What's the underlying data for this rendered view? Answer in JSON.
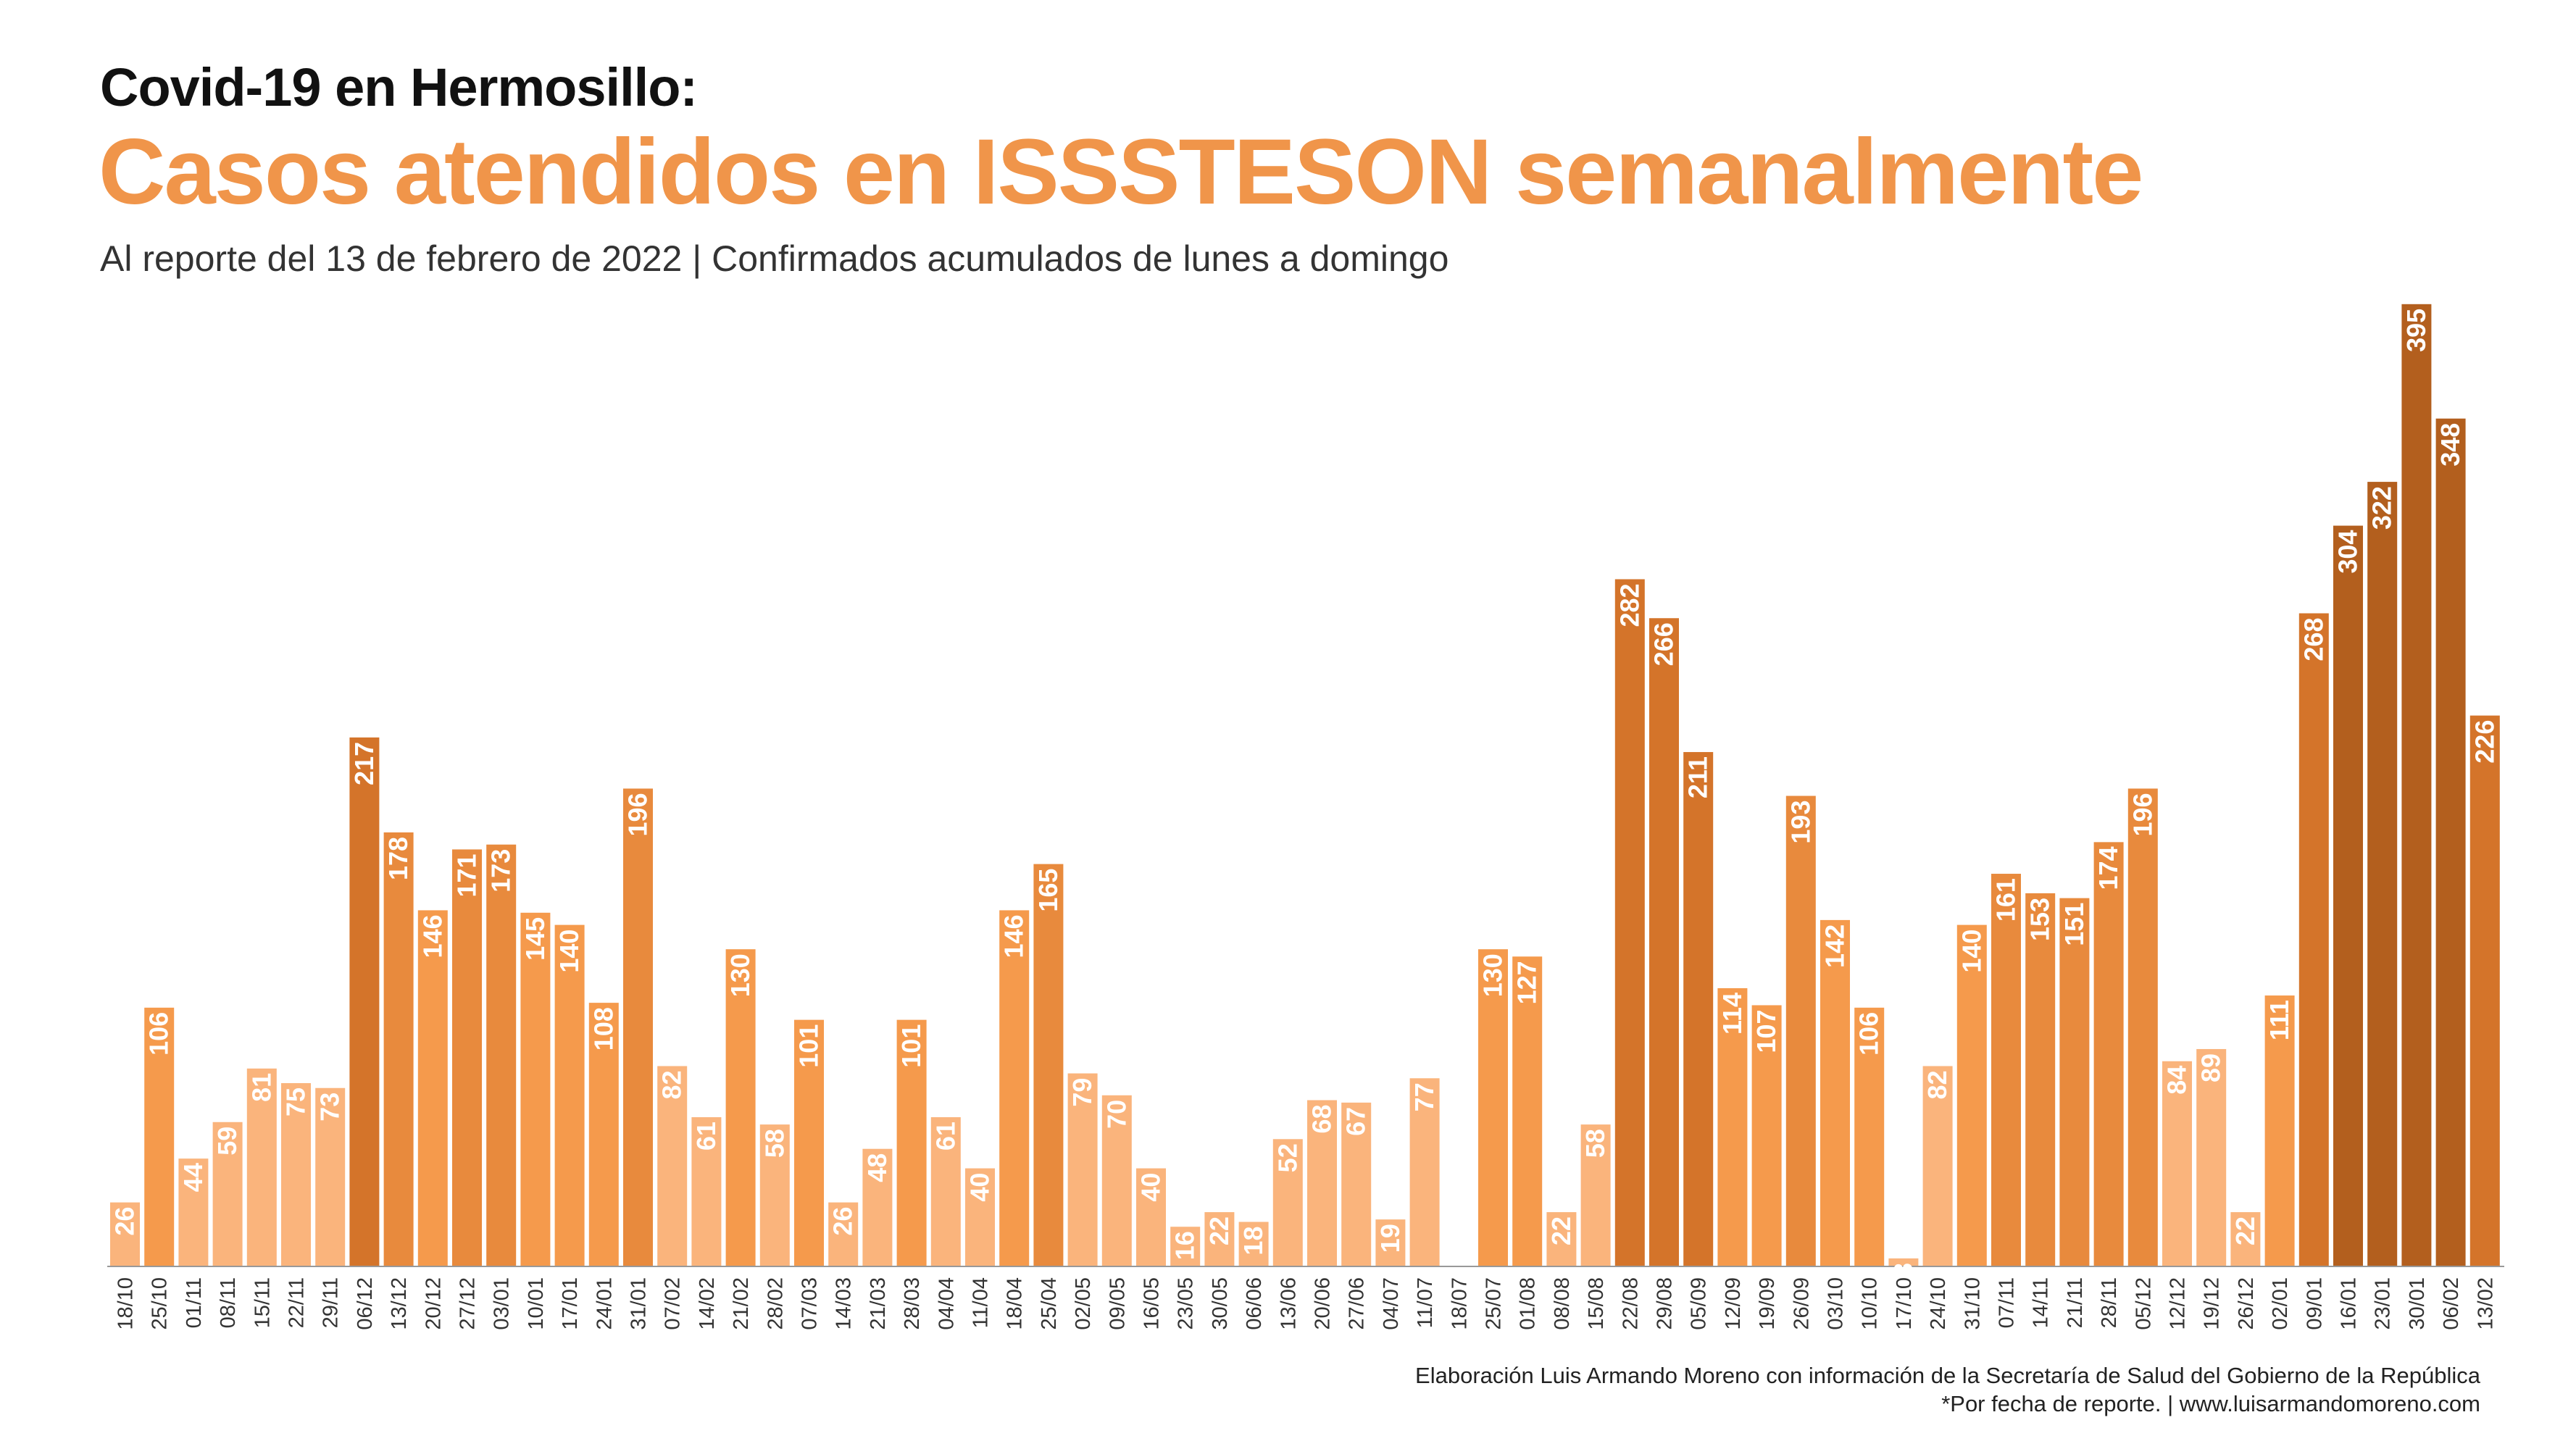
{
  "header": {
    "title": "Covid-19 en Hermosillo:",
    "headline": "Casos atendidos en ISSSTESON semanalmente",
    "subtitle": "Al reporte del 13 de febrero de 2022 | Confirmados acumulados de lunes a domingo"
  },
  "footer": {
    "credit_line1": "Elaboración Luis Armando Moreno con información de la Secretaría de Salud del Gobierno de la República",
    "credit_line2": "*Por fecha de reporte. | www.luisarmandomoreno.com"
  },
  "colors": {
    "level1": "#fab47c",
    "level2": "#f59a4c",
    "level3": "#e88a3d",
    "level4": "#d4742a",
    "level5": "#b35f1e",
    "axis": "#999999",
    "tick_label": "#333333",
    "bar_label": "#ffffff"
  },
  "chart_data": {
    "type": "bar",
    "title": "Casos atendidos en ISSSTESON semanalmente",
    "xlabel": "",
    "ylabel": "",
    "ylim": [
      0,
      400
    ],
    "grid": false,
    "legend": "none",
    "categories": [
      "18/10",
      "25/10",
      "01/11",
      "08/11",
      "15/11",
      "22/11",
      "29/11",
      "06/12",
      "13/12",
      "20/12",
      "27/12",
      "03/01",
      "10/01",
      "17/01",
      "24/01",
      "31/01",
      "07/02",
      "14/02",
      "21/02",
      "28/02",
      "07/03",
      "14/03",
      "21/03",
      "28/03",
      "04/04",
      "11/04",
      "18/04",
      "25/04",
      "02/05",
      "09/05",
      "16/05",
      "23/05",
      "30/05",
      "06/06",
      "13/06",
      "20/06",
      "27/06",
      "04/07",
      "11/07",
      "18/07",
      "25/07",
      "01/08",
      "08/08",
      "15/08",
      "22/08",
      "29/08",
      "05/09",
      "12/09",
      "19/09",
      "26/09",
      "03/10",
      "10/10",
      "17/10",
      "24/10",
      "31/10",
      "07/11",
      "14/11",
      "21/11",
      "28/11",
      "05/12",
      "12/12",
      "19/12",
      "26/12",
      "02/01",
      "09/01",
      "16/01",
      "23/01",
      "30/01",
      "06/02",
      "13/02"
    ],
    "values": [
      26,
      106,
      44,
      59,
      81,
      75,
      73,
      217,
      178,
      146,
      171,
      173,
      145,
      140,
      108,
      196,
      82,
      61,
      130,
      58,
      101,
      26,
      48,
      101,
      61,
      40,
      146,
      165,
      79,
      70,
      40,
      16,
      22,
      18,
      52,
      68,
      67,
      19,
      77,
      0,
      130,
      127,
      22,
      58,
      282,
      266,
      211,
      114,
      107,
      193,
      142,
      106,
      3,
      82,
      140,
      161,
      153,
      151,
      174,
      196,
      84,
      89,
      22,
      111,
      268,
      304,
      322,
      395,
      348,
      226
    ]
  }
}
